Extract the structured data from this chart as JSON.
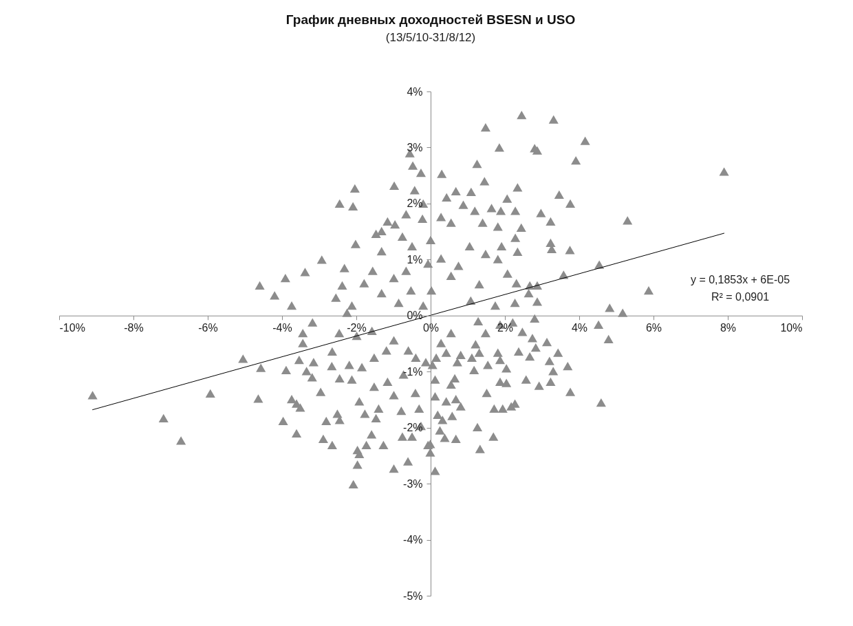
{
  "chart_data": {
    "type": "scatter",
    "title": "График дневных доходностей  BSESN и USO",
    "subtitle": "(13/5/10-31/8/12)",
    "marker": "triangle",
    "line_style": "solid",
    "xlim": [
      -10,
      10
    ],
    "ylim": [
      -5,
      4
    ],
    "xticks": [
      {
        "value": -10,
        "label": "-10%"
      },
      {
        "value": -8,
        "label": "-8%"
      },
      {
        "value": -6,
        "label": "-6%"
      },
      {
        "value": -4,
        "label": "-4%"
      },
      {
        "value": -2,
        "label": "-2%"
      },
      {
        "value": 0,
        "label": "0%"
      },
      {
        "value": 2,
        "label": "2%"
      },
      {
        "value": 4,
        "label": "4%"
      },
      {
        "value": 6,
        "label": "6%"
      },
      {
        "value": 8,
        "label": "8%"
      },
      {
        "value": 10,
        "label": "10%"
      }
    ],
    "yticks": [
      {
        "value": -5,
        "label": "-5%"
      },
      {
        "value": -4,
        "label": "-4%"
      },
      {
        "value": -3,
        "label": "-3%"
      },
      {
        "value": -2,
        "label": "-2%"
      },
      {
        "value": -1,
        "label": "-1%"
      },
      {
        "value": 0,
        "label": "0%"
      },
      {
        "value": 1,
        "label": "1%"
      },
      {
        "value": 2,
        "label": "2%"
      },
      {
        "value": 3,
        "label": "3%"
      },
      {
        "value": 4,
        "label": "4%"
      }
    ],
    "annotations": [
      "y = 0,1853x + 6E-05",
      "R² = 0,0901"
    ],
    "series": [
      {
        "color": "#8c8c8c",
        "x": [
          -0.56,
          -0.48,
          -0.26,
          -0.98,
          -2.04,
          -0.43,
          -2.45,
          -2.09,
          -0.66,
          -0.2,
          -0.22,
          -1.16,
          -0.96,
          -1.47,
          -1.32,
          -0.76,
          -2.02,
          -1.32,
          -0.5,
          -2.93,
          -2.32,
          -3.38,
          -3.91,
          -4.6,
          -4.2,
          -3.74,
          -1.56,
          -2.38,
          -2.55,
          -0.99,
          -1.79,
          -0.07,
          -0.66,
          0,
          -2.12,
          -2.25,
          -1.32,
          -0.53,
          -0.2,
          -0.86,
          2.45,
          3.31,
          1.48,
          4.16,
          1.85,
          2.8,
          2.87,
          3.91,
          7.9,
          1.25,
          0.3,
          1.45,
          2.34,
          0.68,
          1.09,
          0.43,
          2.06,
          3.46,
          3.76,
          0.88,
          1.19,
          1.64,
          1.89,
          2.28,
          2.97,
          3.23,
          5.3,
          1.4,
          1.81,
          2.44,
          0.55,
          0.28,
          3.23,
          3.26,
          3.75,
          1.91,
          2.28,
          1.05,
          1.48,
          2.34,
          1.81,
          4.54,
          3.58,
          5.87,
          4.82,
          5.17,
          1.31,
          2.07,
          2.67,
          2.87,
          2.87,
          2.64,
          2.31,
          0.75,
          0.28,
          0.55,
          0.02,
          1.08,
          1.74,
          2.27,
          -9.1,
          -5.93,
          -7.19,
          -6.72,
          -5.05,
          -4.57,
          -4.64,
          -3.89,
          -3.74,
          -3.61,
          -3.51,
          -3.97,
          -3.61,
          -3.18,
          -3.44,
          -3.44,
          -3.54,
          -3.15,
          -3.34,
          -3.19,
          -2.96,
          -2.65,
          -2.66,
          -2.46,
          -2.51,
          -2.45,
          -2.81,
          -2.89,
          -2.65,
          -2.19,
          -2.45,
          -2.12,
          -1.92,
          -1.77,
          -1.97,
          -1.92,
          -1.97,
          -2.08,
          -1.73,
          -1.59,
          -1.27,
          -1.4,
          -1.47,
          -1.52,
          -1.16,
          -0.99,
          -0.79,
          -0.99,
          -0.76,
          -0.5,
          -0.61,
          -0.31,
          -0.26,
          -0.41,
          -0.73,
          -0.07,
          -0.01,
          -1.52,
          -1.85,
          -1.19,
          -0.6,
          -0.99,
          -1.58,
          -0.4,
          -0.13,
          -1.99,
          4.52,
          4.79,
          4.59,
          3.76,
          3.69,
          3.43,
          3.13,
          3.2,
          3.3,
          3.23,
          2.92,
          2.57,
          2.83,
          2.67,
          2.74,
          2.8,
          2.47,
          2.37,
          2.04,
          1.87,
          2.04,
          1.51,
          2.27,
          2.17,
          1.94,
          1.71,
          1.26,
          1.69,
          1.33,
          0.68,
          0.38,
          0.25,
          -0.01,
          0.12,
          0.58,
          0.32,
          0.19,
          0.81,
          0.68,
          0.42,
          0.12,
          0.65,
          0.55,
          0.12,
          1.17,
          0.81,
          0.72,
          0.42,
          0.15,
          0.05,
          1.21,
          1.31,
          1.11,
          1.54,
          1.81,
          1.87,
          2.21,
          1.87,
          1.28,
          1.48,
          0.55,
          0.28
        ],
        "values": [
          2.9,
          2.68,
          2.55,
          2.32,
          2.27,
          2.24,
          2,
          1.95,
          1.81,
          2,
          1.73,
          1.68,
          1.63,
          1.46,
          1.51,
          1.41,
          1.28,
          1.15,
          1.24,
          1,
          0.85,
          0.78,
          0.67,
          0.54,
          0.36,
          0.18,
          0.8,
          0.54,
          0.32,
          0.67,
          0.58,
          0.93,
          0.8,
          1.35,
          0.18,
          0.05,
          0.4,
          0.45,
          0.18,
          0.23,
          3.58,
          3.5,
          3.36,
          3.12,
          3,
          2.99,
          2.95,
          2.77,
          2.57,
          2.71,
          2.53,
          2.4,
          2.29,
          2.22,
          2.21,
          2.11,
          2.09,
          2.16,
          2,
          1.98,
          1.87,
          1.92,
          1.87,
          1.87,
          1.83,
          1.68,
          1.7,
          1.66,
          1.59,
          1.57,
          1.66,
          1.76,
          1.3,
          1.19,
          1.17,
          1.24,
          1.39,
          1.24,
          1.1,
          1.14,
          1.01,
          0.91,
          0.73,
          0.45,
          0.14,
          0.05,
          0.56,
          0.75,
          0.54,
          0.54,
          0.25,
          0.4,
          0.58,
          0.89,
          1.02,
          0.71,
          0.45,
          0.27,
          0.18,
          0.23,
          -1.42,
          -1.39,
          -1.83,
          -2.23,
          -0.77,
          -0.93,
          -1.48,
          -0.97,
          -1.49,
          -1.57,
          -1.64,
          -1.88,
          -2.1,
          -0.12,
          -0.31,
          -0.49,
          -0.79,
          -0.83,
          -0.99,
          -1.1,
          -1.36,
          -0.64,
          -0.9,
          -0.31,
          -1.75,
          -1.86,
          -1.88,
          -2.2,
          -2.31,
          -0.88,
          -1.12,
          -1.14,
          -1.53,
          -1.75,
          -2.4,
          -2.47,
          -2.66,
          -3.01,
          -2.31,
          -2.12,
          -2.31,
          -1.66,
          -1.83,
          -1.27,
          -1.18,
          -1.42,
          -1.7,
          -2.73,
          -2.16,
          -2.16,
          -2.6,
          -1.66,
          -1.97,
          -1.38,
          -1.05,
          -2.31,
          -2.44,
          -0.75,
          -0.92,
          -0.62,
          -0.62,
          -0.44,
          -0.27,
          -0.75,
          -0.83,
          -0.36,
          -0.16,
          -0.42,
          -1.55,
          -1.36,
          -0.9,
          -0.66,
          -0.47,
          -0.81,
          -0.99,
          -1.18,
          -1.25,
          -1.14,
          -0.57,
          -0.73,
          -0.4,
          -0.05,
          -0.29,
          -0.64,
          -0.94,
          -1.18,
          -1.2,
          -1.38,
          -1.57,
          -1.62,
          -1.66,
          -1.66,
          -1.99,
          -2.16,
          -2.38,
          -2.2,
          -2.18,
          -2.05,
          -2.29,
          -2.77,
          -1.79,
          -1.86,
          -1.77,
          -1.62,
          -1.49,
          -1.53,
          -1.44,
          -1.12,
          -1.23,
          -1.14,
          -0.97,
          -0.7,
          -0.83,
          -0.66,
          -0.75,
          -0.88,
          -0.51,
          -0.66,
          -0.75,
          -0.88,
          -0.66,
          -0.79,
          -0.12,
          -0.16,
          -0.1,
          -0.31,
          -0.31,
          -0.49
        ]
      },
      {
        "type": "line",
        "marker": "none",
        "color": "#000000",
        "x": [
          -9.1,
          7.9
        ],
        "values": [
          -1.68,
          1.47
        ]
      }
    ]
  }
}
